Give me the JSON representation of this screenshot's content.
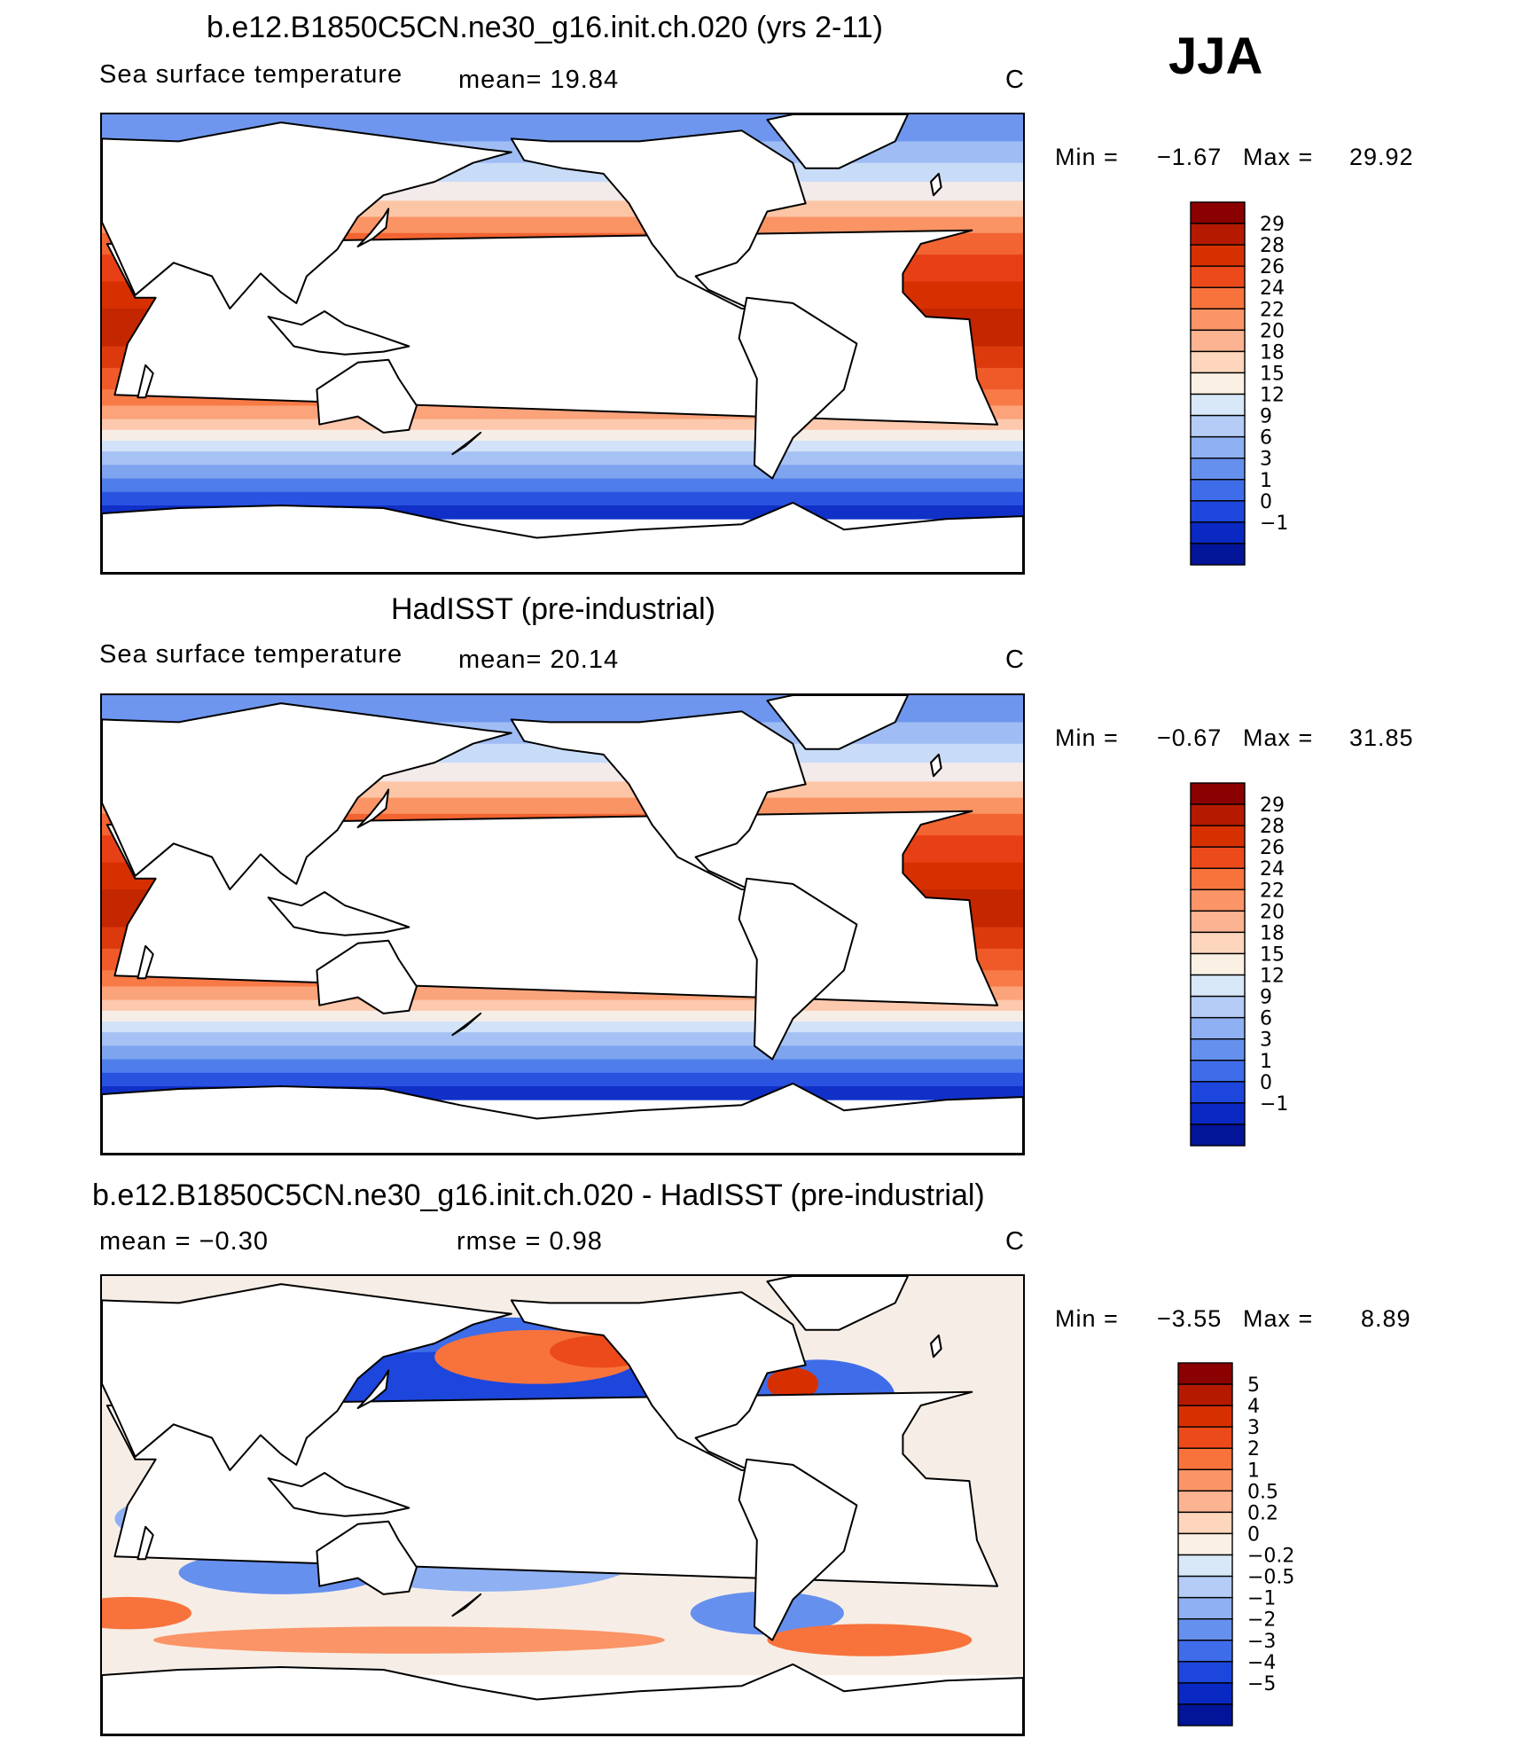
{
  "season": "JJA",
  "panels": [
    {
      "title": "b.e12.B1850C5CN.ne30_g16.init.ch.020 (yrs 2-11)",
      "left_label": "Sea surface temperature",
      "middle_label": "mean=   19.84",
      "units": "C",
      "min_label": "Min =",
      "min_value": "−1.67",
      "max_label": "Max =",
      "max_value": "29.92",
      "colorbar_labels": [
        "29",
        "28",
        "26",
        "24",
        "22",
        "20",
        "18",
        "15",
        "12",
        "9",
        "6",
        "3",
        "1",
        "0",
        "−1"
      ],
      "colorbar_colors": [
        "#8b0000",
        "#b51a00",
        "#d73000",
        "#ec4a1a",
        "#f8733c",
        "#fb9466",
        "#fcb392",
        "#fdd6bd",
        "#fbf0e4",
        "#d8e8f8",
        "#b4ccf6",
        "#8fb0f2",
        "#6690ee",
        "#3f6ce8",
        "#1d46dc",
        "#0a28c2",
        "#021498"
      ],
      "map_type": "abs"
    },
    {
      "title": "HadISST (pre-industrial)",
      "left_label": "Sea surface temperature",
      "middle_label": "mean=   20.14",
      "units": "C",
      "min_label": "Min =",
      "min_value": "−0.67",
      "max_label": "Max =",
      "max_value": "31.85",
      "colorbar_labels": [
        "29",
        "28",
        "26",
        "24",
        "22",
        "20",
        "18",
        "15",
        "12",
        "9",
        "6",
        "3",
        "1",
        "0",
        "−1"
      ],
      "colorbar_colors": [
        "#8b0000",
        "#b51a00",
        "#d73000",
        "#ec4a1a",
        "#f8733c",
        "#fb9466",
        "#fcb392",
        "#fdd6bd",
        "#fbf0e4",
        "#d8e8f8",
        "#b4ccf6",
        "#8fb0f2",
        "#6690ee",
        "#3f6ce8",
        "#1d46dc",
        "#0a28c2",
        "#021498"
      ],
      "map_type": "abs"
    },
    {
      "title": "b.e12.B1850C5CN.ne30_g16.init.ch.020 - HadISST (pre-industrial)",
      "left_label": "mean =   −0.30",
      "middle_label": "rmse =    0.98",
      "units": "C",
      "min_label": "Min =",
      "min_value": "−3.55",
      "max_label": "Max =",
      "max_value": "8.89",
      "colorbar_labels": [
        "5",
        "4",
        "3",
        "2",
        "1",
        "0.5",
        "0.2",
        "0",
        "−0.2",
        "−0.5",
        "−1",
        "−2",
        "−3",
        "−4",
        "−5"
      ],
      "colorbar_colors": [
        "#8b0000",
        "#b51a00",
        "#d73000",
        "#ec4a1a",
        "#f8733c",
        "#fb9466",
        "#fcb392",
        "#fdd6bd",
        "#fbf0e4",
        "#d8e8f8",
        "#b4ccf6",
        "#8fb0f2",
        "#6690ee",
        "#3f6ce8",
        "#1d46dc",
        "#0a28c2",
        "#021498"
      ],
      "map_type": "diff"
    }
  ]
}
